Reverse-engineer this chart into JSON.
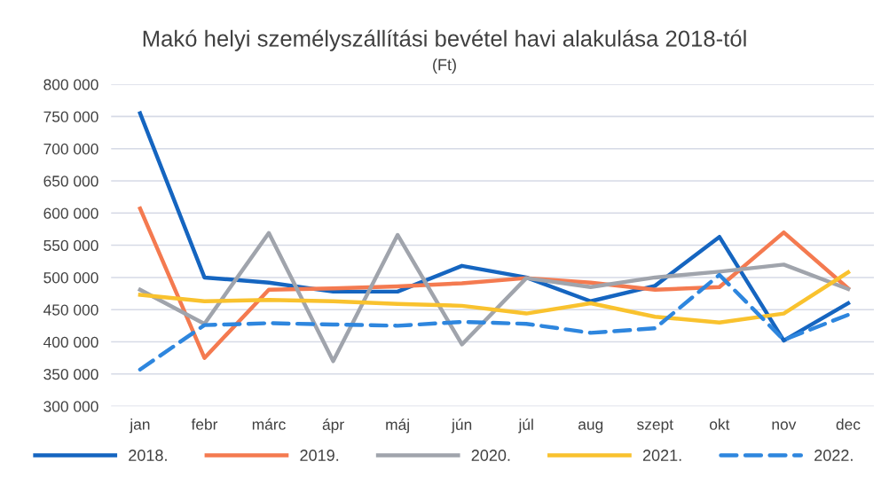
{
  "chart_data": {
    "type": "line",
    "title": "Makó helyi személyszállítási bevétel havi alakulása 2018-tól",
    "subtitle": "(Ft)",
    "categories": [
      "jan",
      "febr",
      "márc",
      "ápr",
      "máj",
      "jún",
      "júl",
      "aug",
      "szept",
      "okt",
      "nov",
      "dec"
    ],
    "series": [
      {
        "name": "2018.",
        "color": "#1565c0",
        "values": [
          755000,
          500000,
          492000,
          478000,
          478000,
          518000,
          500000,
          463000,
          487000,
          563000,
          402000,
          460000
        ]
      },
      {
        "name": "2019.",
        "color": "#f47a50",
        "values": [
          607000,
          375000,
          481000,
          483000,
          486000,
          491000,
          499000,
          492000,
          481000,
          485000,
          570000,
          483000
        ]
      },
      {
        "name": "2020.",
        "color": "#a0a4ac",
        "values": [
          481000,
          428000,
          569000,
          370000,
          566000,
          396000,
          499000,
          485000,
          500000,
          509000,
          520000,
          482000
        ]
      },
      {
        "name": "2021.",
        "color": "#f9c22e",
        "values": [
          473000,
          463000,
          465000,
          463000,
          459000,
          456000,
          444000,
          460000,
          439000,
          430000,
          444000,
          508000
        ]
      },
      {
        "name": "2022.",
        "color": "#2e86de",
        "line_style": "dashed",
        "values": [
          357000,
          426000,
          429000,
          427000,
          425000,
          431000,
          428000,
          414000,
          421000,
          504000,
          403000,
          442000
        ]
      }
    ],
    "ylim": [
      300000,
      800000
    ],
    "yticks": [
      {
        "value": 300000,
        "label": "300 000"
      },
      {
        "value": 350000,
        "label": "350 000"
      },
      {
        "value": 400000,
        "label": "400 000"
      },
      {
        "value": 450000,
        "label": "450 000"
      },
      {
        "value": 500000,
        "label": "500 000"
      },
      {
        "value": 550000,
        "label": "550 000"
      },
      {
        "value": 600000,
        "label": "600 000"
      },
      {
        "value": 650000,
        "label": "650 000"
      },
      {
        "value": 700000,
        "label": "700 000"
      },
      {
        "value": 750000,
        "label": "750 000"
      },
      {
        "value": 800000,
        "label": "800 000"
      }
    ],
    "grid": "y",
    "legend": "bottom",
    "marker": "none",
    "line_style": "solid"
  }
}
